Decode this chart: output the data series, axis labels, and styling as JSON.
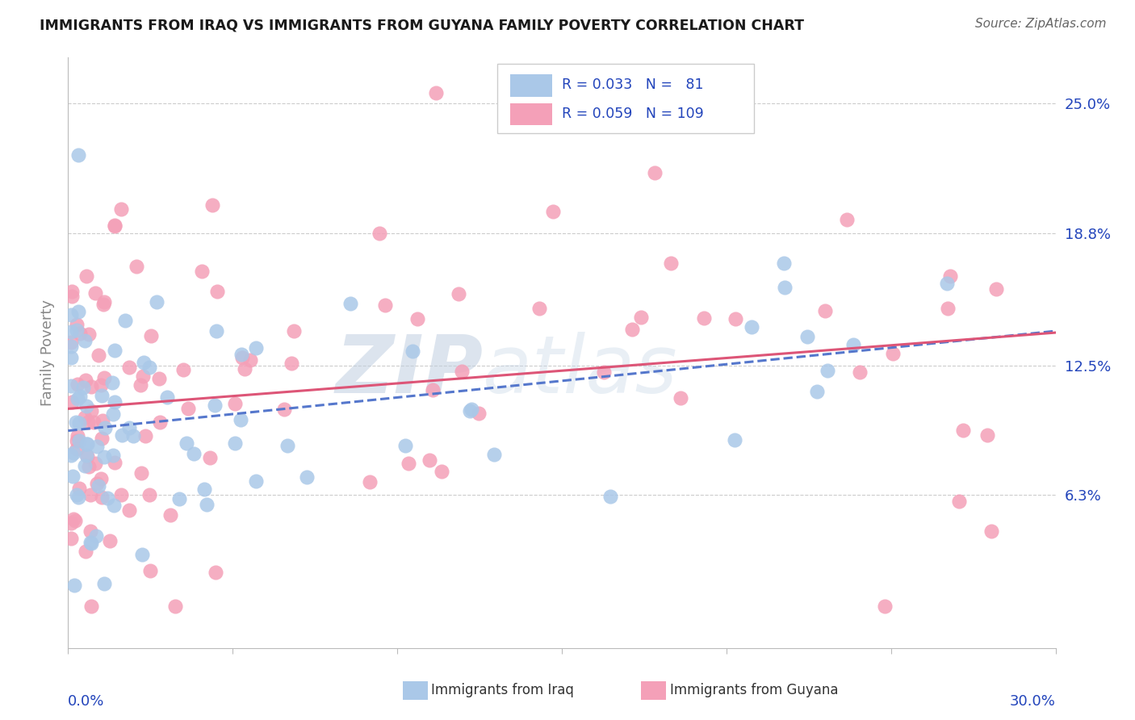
{
  "title": "IMMIGRANTS FROM IRAQ VS IMMIGRANTS FROM GUYANA FAMILY POVERTY CORRELATION CHART",
  "source": "Source: ZipAtlas.com",
  "ylabel": "Family Poverty",
  "y_tick_labels": [
    "6.3%",
    "12.5%",
    "18.8%",
    "25.0%"
  ],
  "y_tick_values": [
    0.063,
    0.125,
    0.188,
    0.25
  ],
  "xlim": [
    0.0,
    0.3
  ],
  "ylim": [
    -0.01,
    0.272
  ],
  "iraq_r": 0.033,
  "iraq_n": 81,
  "guyana_r": 0.059,
  "guyana_n": 109,
  "iraq_dot_color": "#aac8e8",
  "guyana_dot_color": "#f4a0b8",
  "iraq_line_color": "#5577cc",
  "guyana_line_color": "#dd5577",
  "legend_text_color": "#2244bb",
  "title_color": "#1a1a1a",
  "watermark_zip_color": "#c0cfe0",
  "watermark_atlas_color": "#c8d8e8",
  "source_color": "#666666",
  "background_color": "#ffffff",
  "grid_color": "#cccccc",
  "axis_label_color": "#2244bb",
  "ylabel_color": "#888888",
  "bottom_legend_label_iraq": "Immigrants from Iraq",
  "bottom_legend_label_guyana": "Immigrants from Guyana"
}
